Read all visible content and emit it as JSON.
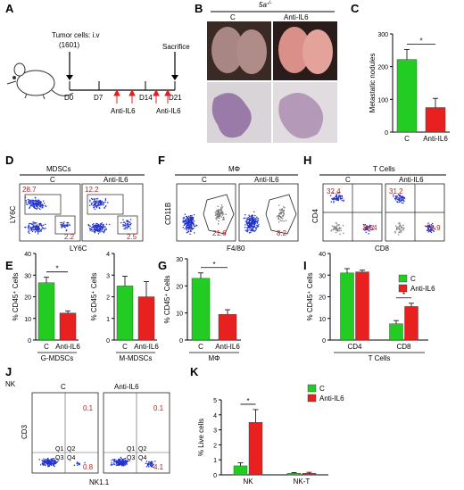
{
  "panels": [
    "A",
    "B",
    "C",
    "D",
    "E",
    "F",
    "G",
    "H",
    "I",
    "J",
    "K"
  ],
  "panelA": {
    "tumor_label": "Tumor cells: i.v",
    "tumor_sub": "(1601)",
    "days": [
      "D0",
      "D7",
      "D14",
      "D21"
    ],
    "treatment1": "Anti-IL6",
    "treatment2": "Anti-IL6",
    "sacrifice": "Sacrifice"
  },
  "panelB": {
    "genotype": "5a",
    "genotype_sup": "-/-",
    "cond_c": "C",
    "cond_anti": "Anti-IL6"
  },
  "panelD": {
    "title": "MDSCs",
    "c": "C",
    "anti": "Anti-IL6",
    "ylab": "LY6C",
    "xlab": "LY6C",
    "c_top": "28.7",
    "c_bot": "2.2",
    "a_top": "12.2",
    "a_bot": "2.5"
  },
  "panelF": {
    "title": "MΦ",
    "c": "C",
    "anti": "Anti-IL6",
    "ylab": "CD11B",
    "xlab": "F4/80",
    "c_val": "21.6",
    "a_val": "8.2"
  },
  "panelH": {
    "title": "T Cells",
    "c": "C",
    "anti": "Anti-IL6",
    "ylab": "CD4",
    "xlab": "CD8",
    "c_tl": "32.4",
    "c_br": "8.64",
    "a_tl": "31.2",
    "a_br": "16.9"
  },
  "panelJ": {
    "title": "NK",
    "c": "C",
    "anti": "Anti-IL6",
    "ylab": "CD3",
    "xlab": "NK1.1",
    "c_tr": "0.1",
    "c_br": "0.8",
    "a_tr": "0.1",
    "a_br": "4.1",
    "quads": [
      "Q1",
      "Q2",
      "Q3",
      "Q4"
    ]
  },
  "colors": {
    "c": "#22cc22",
    "anti": "#e82020",
    "flow": "#2233cc",
    "value": "#b22222"
  },
  "chart_data": [
    {
      "id": "C",
      "type": "bar",
      "categories": [
        "C",
        "Anti-IL6"
      ],
      "values": [
        222,
        75
      ],
      "errors": [
        30,
        28
      ],
      "ylabel": "Metastatic nodules",
      "ylim": [
        0,
        300
      ],
      "yticks": [
        0,
        100,
        200,
        300
      ],
      "significance": "*"
    },
    {
      "id": "E1",
      "type": "bar",
      "categories": [
        "C",
        "Anti-IL6"
      ],
      "values": [
        26.5,
        12.5
      ],
      "errors": [
        2.5,
        1.0
      ],
      "ylabel": "% CD45⁺ Cells",
      "xlabel": "G-MDSCs",
      "ylim": [
        0,
        40
      ],
      "yticks": [
        0,
        10,
        20,
        30,
        40
      ],
      "significance": "*"
    },
    {
      "id": "E2",
      "type": "bar",
      "categories": [
        "C",
        "Anti-IL6"
      ],
      "values": [
        2.5,
        2.0
      ],
      "errors": [
        0.45,
        0.7
      ],
      "ylabel": "% CD45⁺ Cells",
      "xlabel": "M-MDSCs",
      "ylim": [
        0,
        4
      ],
      "yticks": [
        0,
        1,
        2,
        3,
        4
      ]
    },
    {
      "id": "G",
      "type": "bar",
      "categories": [
        "C",
        "Anti-IL6"
      ],
      "values": [
        22.8,
        9.5
      ],
      "errors": [
        2.0,
        1.7
      ],
      "ylabel": "% CD45⁺ Cells",
      "xlabel": "MΦ",
      "ylim": [
        0,
        30
      ],
      "yticks": [
        0,
        10,
        20,
        30
      ],
      "significance": "*"
    },
    {
      "id": "I",
      "type": "bar",
      "groups": [
        "CD4",
        "CD8"
      ],
      "series": [
        {
          "name": "C",
          "values": [
            31,
            7.5
          ],
          "errors": [
            2,
            1.5
          ]
        },
        {
          "name": "Anti-IL6",
          "values": [
            31.5,
            15.5
          ],
          "errors": [
            0.8,
            1.5
          ]
        }
      ],
      "ylabel": "% CD45⁺ Cells",
      "xlabel": "T Cells",
      "ylim": [
        0,
        40
      ],
      "yticks": [
        0,
        10,
        20,
        30,
        40
      ],
      "significance": "*"
    },
    {
      "id": "K",
      "type": "bar",
      "groups": [
        "NK",
        "NK-T"
      ],
      "series": [
        {
          "name": "C",
          "values": [
            0.6,
            0.1
          ],
          "errors": [
            0.2,
            0.05
          ]
        },
        {
          "name": "Anti-IL6",
          "values": [
            3.5,
            0.1
          ],
          "errors": [
            0.85,
            0.07
          ]
        }
      ],
      "ylabel": "% Live cells",
      "ylim": [
        0,
        5
      ],
      "yticks": [
        0,
        1,
        2,
        3,
        4,
        5
      ],
      "significance": "*"
    }
  ]
}
